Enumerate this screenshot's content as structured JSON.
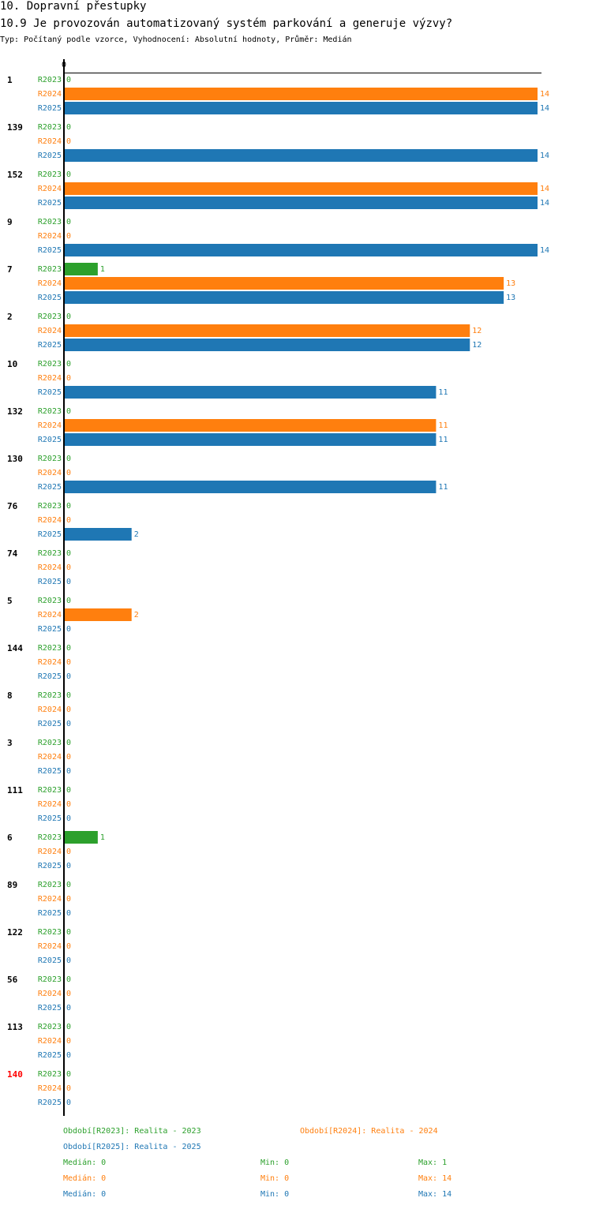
{
  "header": {
    "section": "10. Dopravní přestupky",
    "question": "10.9 Je provozován automatizovaný systém parkování a generuje výzvy?",
    "meta": "Typ: Počítaný podle vzorce, Vyhodnocení: Absolutní hodnoty, Průměr: Medián"
  },
  "chart_data": {
    "type": "bar",
    "orientation": "horizontal",
    "axis_zero_label": "0",
    "xlim": [
      0,
      14
    ],
    "categories": [
      "1",
      "139",
      "152",
      "9",
      "7",
      "2",
      "10",
      "132",
      "130",
      "76",
      "74",
      "5",
      "144",
      "8",
      "3",
      "111",
      "6",
      "89",
      "122",
      "56",
      "113",
      "140"
    ],
    "highlighted_category": "140",
    "highlight_color": "#ff0000",
    "series": [
      {
        "name": "R2023",
        "color": "#2ca02c",
        "values": [
          0,
          0,
          0,
          0,
          1,
          0,
          0,
          0,
          0,
          0,
          0,
          0,
          0,
          0,
          0,
          0,
          1,
          0,
          0,
          0,
          0,
          0
        ]
      },
      {
        "name": "R2024",
        "color": "#ff7f0e",
        "values": [
          14,
          0,
          14,
          0,
          13,
          12,
          0,
          11,
          0,
          0,
          0,
          2,
          0,
          0,
          0,
          0,
          0,
          0,
          0,
          0,
          0,
          0
        ]
      },
      {
        "name": "R2025",
        "color": "#1f77b4",
        "values": [
          14,
          14,
          14,
          14,
          13,
          12,
          11,
          11,
          11,
          2,
          0,
          0,
          0,
          0,
          0,
          0,
          0,
          0,
          0,
          0,
          0,
          0
        ]
      }
    ]
  },
  "legend": {
    "periods": [
      {
        "text": "Období[R2023]: Realita - 2023",
        "color": "#2ca02c"
      },
      {
        "text": "Období[R2024]: Realita - 2024",
        "color": "#ff7f0e"
      },
      {
        "text": "Období[R2025]: Realita - 2025",
        "color": "#1f77b4"
      }
    ],
    "stats": [
      {
        "median": "Medián: 0",
        "min": "Min: 0",
        "max": "Max: 1",
        "color": "#2ca02c"
      },
      {
        "median": "Medián: 0",
        "min": "Min: 0",
        "max": "Max: 14",
        "color": "#ff7f0e"
      },
      {
        "median": "Medián: 0",
        "min": "Min: 0",
        "max": "Max: 14",
        "color": "#1f77b4"
      }
    ]
  }
}
